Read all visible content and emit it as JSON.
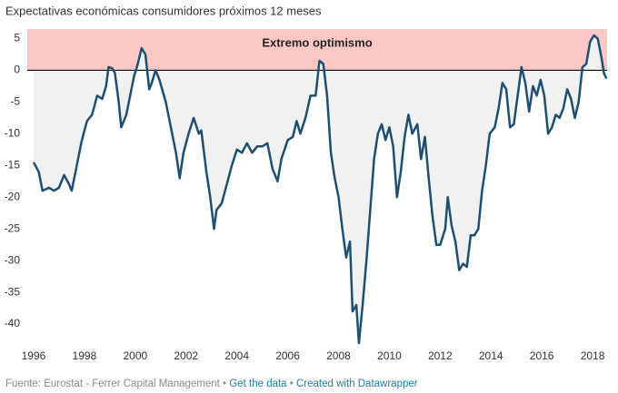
{
  "chart_data": {
    "type": "line",
    "title": "Expectativas económicas consumidores próximos 12 meses",
    "band_label": "Extremo optimismo",
    "band_color": "#fdc8c4",
    "fill_color": "#f1f1f1",
    "x": [
      1996.0,
      1996.2,
      1996.35,
      1996.6,
      1996.8,
      1997.0,
      1997.2,
      1997.4,
      1997.5,
      1997.7,
      1997.9,
      1998.1,
      1998.3,
      1998.5,
      1998.7,
      1998.85,
      1998.95,
      1999.1,
      1999.2,
      1999.35,
      1999.45,
      1999.65,
      1999.8,
      1999.95,
      2000.1,
      2000.25,
      2000.4,
      2000.55,
      2000.65,
      2000.8,
      2000.95,
      2001.2,
      2001.4,
      2001.6,
      2001.75,
      2001.9,
      2002.1,
      2002.3,
      2002.5,
      2002.6,
      2002.8,
      2002.95,
      2003.1,
      2003.2,
      2003.4,
      2003.6,
      2003.8,
      2004.0,
      2004.2,
      2004.4,
      2004.6,
      2004.8,
      2005.0,
      2005.2,
      2005.4,
      2005.6,
      2005.75,
      2006.0,
      2006.2,
      2006.35,
      2006.5,
      2006.7,
      2006.9,
      2007.1,
      2007.25,
      2007.4,
      2007.55,
      2007.7,
      2007.85,
      2008.0,
      2008.15,
      2008.3,
      2008.45,
      2008.55,
      2008.7,
      2008.8,
      2008.95,
      2009.1,
      2009.25,
      2009.4,
      2009.55,
      2009.7,
      2009.85,
      2010.0,
      2010.15,
      2010.3,
      2010.45,
      2010.6,
      2010.75,
      2010.9,
      2011.1,
      2011.25,
      2011.4,
      2011.55,
      2011.7,
      2011.85,
      2012.0,
      2012.2,
      2012.3,
      2012.45,
      2012.6,
      2012.75,
      2012.9,
      2013.05,
      2013.2,
      2013.35,
      2013.5,
      2013.65,
      2013.8,
      2013.95,
      2014.15,
      2014.3,
      2014.45,
      2014.6,
      2014.75,
      2014.9,
      2015.05,
      2015.2,
      2015.35,
      2015.5,
      2015.65,
      2015.8,
      2015.95,
      2016.1,
      2016.25,
      2016.4,
      2016.55,
      2016.7,
      2016.85,
      2017.0,
      2017.15,
      2017.3,
      2017.45,
      2017.6,
      2017.75,
      2017.9,
      2018.05,
      2018.2,
      2018.35,
      2018.45,
      2018.55
    ],
    "series": [
      {
        "color": "#1d4f73",
        "values": [
          -14.5,
          -16,
          -19,
          -18.5,
          -19,
          -18.5,
          -16.5,
          -18,
          -19,
          -15,
          -11,
          -8,
          -7,
          -4,
          -4.5,
          -2.5,
          0.5,
          0.3,
          -0.5,
          -5,
          -9,
          -7,
          -4,
          -1,
          1,
          3.5,
          2.5,
          -3,
          -2,
          0,
          -1.5,
          -5,
          -9,
          -13,
          -17,
          -13,
          -10,
          -7.5,
          -10,
          -9.5,
          -16,
          -20,
          -25,
          -22,
          -21,
          -18,
          -15,
          -12.5,
          -13,
          -11.5,
          -13,
          -12,
          -12,
          -11.5,
          -15.5,
          -17.5,
          -14,
          -11,
          -10.5,
          -8,
          -10,
          -7.5,
          -4,
          -4,
          1.5,
          1,
          -4,
          -13,
          -17,
          -20,
          -25,
          -29.5,
          -27,
          -38,
          -37,
          -43,
          -37,
          -30,
          -22,
          -14,
          -10,
          -8.5,
          -11,
          -9,
          -12,
          -20,
          -16,
          -10.5,
          -7,
          -10,
          -8.5,
          -14,
          -10.5,
          -17,
          -23,
          -27.5,
          -27.5,
          -25,
          -20,
          -24.5,
          -27,
          -31.5,
          -30.5,
          -31,
          -26,
          -26,
          -25,
          -19,
          -15,
          -10,
          -9,
          -6,
          -2,
          -3,
          -9,
          -8.5,
          -4,
          0.5,
          -2,
          -6.5,
          -2.5,
          -4,
          -1.5,
          -4,
          -10,
          -9,
          -7,
          -7.5,
          -6,
          -3,
          -4.5,
          -7.5,
          -5,
          0.5,
          1,
          4.5,
          5.5,
          5,
          2,
          -0.5,
          -1.3
        ]
      }
    ],
    "xlim": [
      1995.75,
      2018.57
    ],
    "xticks": [
      1996,
      1998,
      2000,
      2002,
      2004,
      2006,
      2008,
      2010,
      2012,
      2014,
      2016,
      2018
    ],
    "ylim": [
      -44,
      6.5
    ],
    "yticks": [
      5,
      0,
      -5,
      -10,
      -15,
      -20,
      -25,
      -30,
      -35,
      -40
    ],
    "baseline": 0,
    "grid": false,
    "footer": {
      "source": "Fuente: Eurostat - Ferrer Capital Management",
      "separator": " • ",
      "data_link": "Get the data",
      "credit": "Created with Datawrapper"
    }
  }
}
